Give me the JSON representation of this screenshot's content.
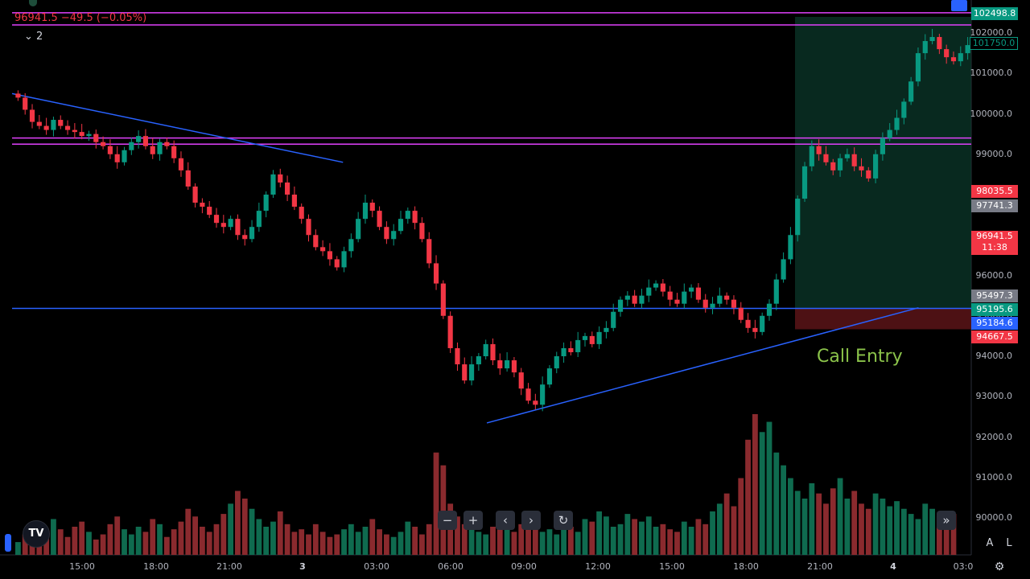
{
  "chart_data": {
    "type": "candlestick",
    "legend_text": "96941.5 −49.5 (−0.05%)",
    "indicator_count": "2",
    "price_axis": [
      "102000.0",
      "101000.0",
      "100000.0",
      "99000.0",
      "98000.0",
      "97000.0",
      "96000.0",
      "95000.0",
      "94000.0",
      "93000.0",
      "92000.0",
      "91000.0",
      "90000.0"
    ],
    "time_axis": [
      "15:00",
      "18:00",
      "21:00",
      "3",
      "03:00",
      "06:00",
      "09:00",
      "12:00",
      "15:00",
      "18:00",
      "21:00",
      "4",
      "03:0"
    ],
    "bold_time_ticks": [
      "3",
      "4"
    ],
    "price_labels": [
      {
        "text": "102498.8",
        "bg": "#089981"
      },
      {
        "text": "101750.0",
        "bg": "#000000",
        "border": "#089981",
        "color": "#089981"
      },
      {
        "text": "98035.5",
        "bg": "#f23645"
      },
      {
        "text": "97741.3",
        "bg": "#787b86"
      },
      {
        "text": "96941.5",
        "sub": "11:38",
        "bg": "#f23645"
      },
      {
        "text": "95497.3",
        "bg": "#787b86"
      },
      {
        "text": "95195.6",
        "bg": "#089981"
      },
      {
        "text": "95184.6",
        "bg": "#2962ff"
      },
      {
        "text": "94667.5",
        "bg": "#f23645"
      }
    ],
    "annotation": "Call Entry",
    "long_position": {
      "entry": 95184.6,
      "stop": 94667.5,
      "target": 102000.0
    },
    "horizontal_lines": [
      {
        "price": 102498.8,
        "color": "#e040fb"
      },
      {
        "price": 102200.0,
        "color": "#e040fb"
      },
      {
        "price": 99400.0,
        "color": "#e040fb"
      },
      {
        "price": 99250.0,
        "color": "#e040fb"
      },
      {
        "price": 95184.6,
        "color": "#2962ff"
      }
    ],
    "trend_lines": [
      {
        "from": {
          "t": 0,
          "p": 100500
        },
        "to": {
          "t": 0.345,
          "p": 98800
        },
        "color": "#2962ff"
      },
      {
        "from": {
          "t": 0.495,
          "p": 92350
        },
        "to": {
          "t": 0.945,
          "p": 95200
        },
        "color": "#2962ff"
      }
    ],
    "ohlc_path": [
      100400,
      100100,
      99800,
      99700,
      99600,
      99850,
      99700,
      99600,
      99550,
      99450,
      99500,
      99300,
      99200,
      99000,
      98800,
      99100,
      99300,
      99450,
      99200,
      99000,
      99300,
      99200,
      98900,
      98600,
      98200,
      97800,
      97700,
      97500,
      97300,
      97200,
      97400,
      97000,
      96900,
      97200,
      97600,
      98000,
      98500,
      98300,
      98000,
      97700,
      97400,
      97000,
      96700,
      96600,
      96400,
      96200,
      96600,
      96900,
      97400,
      97800,
      97600,
      97200,
      96900,
      97100,
      97400,
      97600,
      97300,
      96900,
      96300,
      95800,
      95000,
      94200,
      93800,
      93400,
      93800,
      94000,
      94300,
      93900,
      93700,
      93900,
      93600,
      93200,
      92900,
      92800,
      93300,
      93700,
      94000,
      94200,
      94100,
      94400,
      94500,
      94300,
      94600,
      94700,
      95100,
      95400,
      95500,
      95300,
      95500,
      95700,
      95800,
      95600,
      95400,
      95300,
      95600,
      95700,
      95400,
      95200,
      95300,
      95500,
      95400,
      95200,
      94900,
      94700,
      94600,
      95000,
      95300,
      95900,
      96400,
      97000,
      97900,
      98700,
      99200,
      99000,
      98800,
      98600,
      98900,
      99000,
      98700,
      98600,
      98400,
      99000,
      99400,
      99600,
      99900,
      100300,
      100800,
      101500,
      101800,
      101900,
      101600,
      101400,
      101300,
      101500,
      101700
    ],
    "volume_path": [
      5,
      8,
      12,
      6,
      9,
      14,
      10,
      7,
      11,
      13,
      9,
      6,
      8,
      12,
      15,
      10,
      8,
      11,
      9,
      14,
      12,
      7,
      10,
      13,
      18,
      15,
      11,
      9,
      12,
      16,
      20,
      25,
      22,
      18,
      14,
      11,
      13,
      17,
      12,
      9,
      10,
      8,
      12,
      9,
      7,
      8,
      10,
      12,
      9,
      11,
      14,
      10,
      8,
      7,
      9,
      13,
      11,
      8,
      12,
      40,
      35,
      20,
      15,
      12,
      10,
      9,
      8,
      11,
      13,
      10,
      9,
      12,
      14,
      11,
      9,
      10,
      8,
      12,
      11,
      9,
      14,
      13,
      17,
      15,
      11,
      12,
      16,
      14,
      13,
      15,
      11,
      12,
      10,
      9,
      13,
      11,
      14,
      12,
      17,
      20,
      24,
      19,
      30,
      45,
      55,
      48,
      52,
      40,
      35,
      30,
      25,
      22,
      28,
      24,
      20,
      26,
      30,
      22,
      25,
      20,
      18,
      24,
      22,
      19,
      21,
      18,
      16,
      14,
      20,
      18,
      15,
      17,
      16
    ],
    "price_range": [
      89600,
      102600
    ],
    "grid": false
  },
  "toolbar": {
    "zoom_out": "−",
    "zoom_in": "+",
    "scroll_left": "‹",
    "scroll_right": "›",
    "reset": "↻",
    "go_to_realtime": "»"
  },
  "scale_buttons": {
    "auto": "A",
    "log": "L"
  },
  "logo": "TV"
}
